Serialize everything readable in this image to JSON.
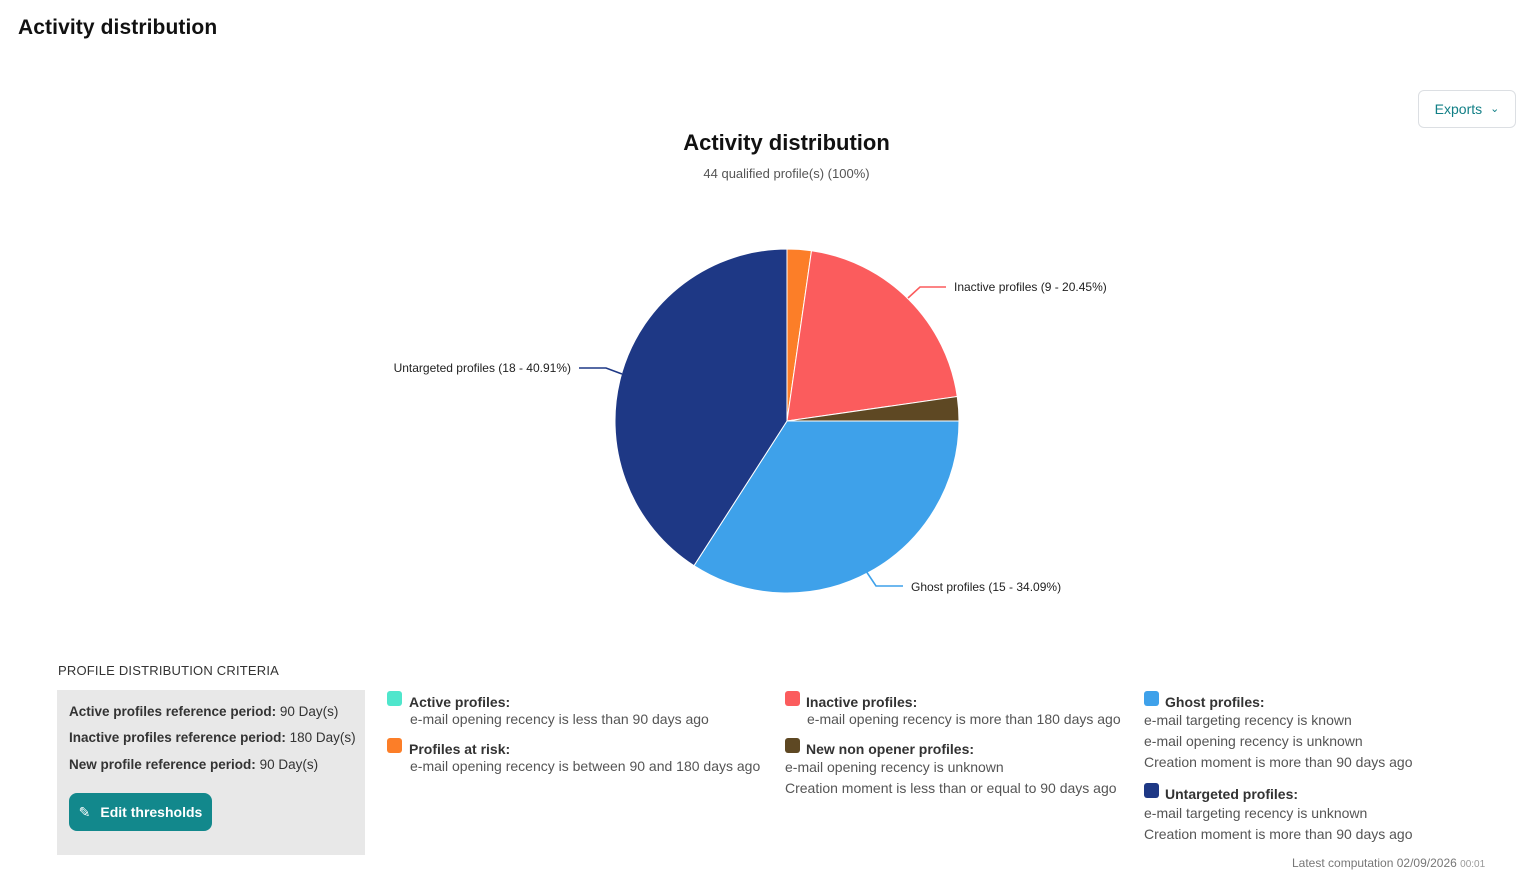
{
  "page": {
    "title": "Activity distribution"
  },
  "toolbar": {
    "exports_label": "Exports"
  },
  "chart_data": {
    "type": "pie",
    "title": "Activity distribution",
    "subtitle": "44 qualified profile(s) (100%)",
    "total": 44,
    "slices": [
      {
        "name": "Profiles at risk",
        "count": 1,
        "percent": 2.27,
        "color": "#fc7e28",
        "label": ""
      },
      {
        "name": "Inactive profiles",
        "count": 9,
        "percent": 20.45,
        "color": "#fb5c5d",
        "label": "Inactive profiles (9 - 20.45%)"
      },
      {
        "name": "New non opener profiles",
        "count": 1,
        "percent": 2.27,
        "color": "#5e4823",
        "label": ""
      },
      {
        "name": "Ghost profiles",
        "count": 15,
        "percent": 34.09,
        "color": "#3ea1ea",
        "label": "Ghost profiles (15 - 34.09%)"
      },
      {
        "name": "Untargeted profiles",
        "count": 18,
        "percent": 40.91,
        "color": "#1e3885",
        "label": "Untargeted profiles (18 - 40.91%)"
      }
    ]
  },
  "criteria": {
    "heading": "PROFILE DISTRIBUTION CRITERIA",
    "rows": [
      {
        "label": "Active profiles reference period:",
        "value": " 90 Day(s)"
      },
      {
        "label": "Inactive profiles reference period:",
        "value": " 180 Day(s)"
      },
      {
        "label": "New profile reference period:",
        "value": " 90 Day(s)"
      }
    ],
    "edit_label": "Edit thresholds"
  },
  "legend": {
    "active": {
      "title": "Active profiles:",
      "color": "#4fe6cc",
      "lines": [
        "e-mail opening recency is less than 90 days ago"
      ]
    },
    "at_risk": {
      "title": "Profiles at risk:",
      "color": "#fc7e28",
      "lines": [
        "e-mail opening recency is between 90 and 180 days ago"
      ]
    },
    "inactive": {
      "title": "Inactive profiles:",
      "color": "#fb5c5d",
      "lines": [
        "e-mail opening recency is more than 180 days ago"
      ]
    },
    "new_non_opener": {
      "title": "New non opener profiles:",
      "color": "#5e4823",
      "lines": [
        "e-mail opening recency is unknown",
        "Creation moment is less than or equal to 90 days ago"
      ]
    },
    "ghost": {
      "title": "Ghost profiles:",
      "color": "#3ea1ea",
      "lines": [
        "e-mail targeting recency is known",
        "e-mail opening recency is unknown",
        "Creation moment is more than 90 days ago"
      ]
    },
    "untargeted": {
      "title": "Untargeted profiles:",
      "color": "#1e3885",
      "lines": [
        "e-mail targeting recency is unknown",
        "Creation moment is more than 90 days ago"
      ]
    }
  },
  "footer": {
    "computation_label": "Latest computation",
    "date": "02/09/2026",
    "time": "00:01"
  }
}
